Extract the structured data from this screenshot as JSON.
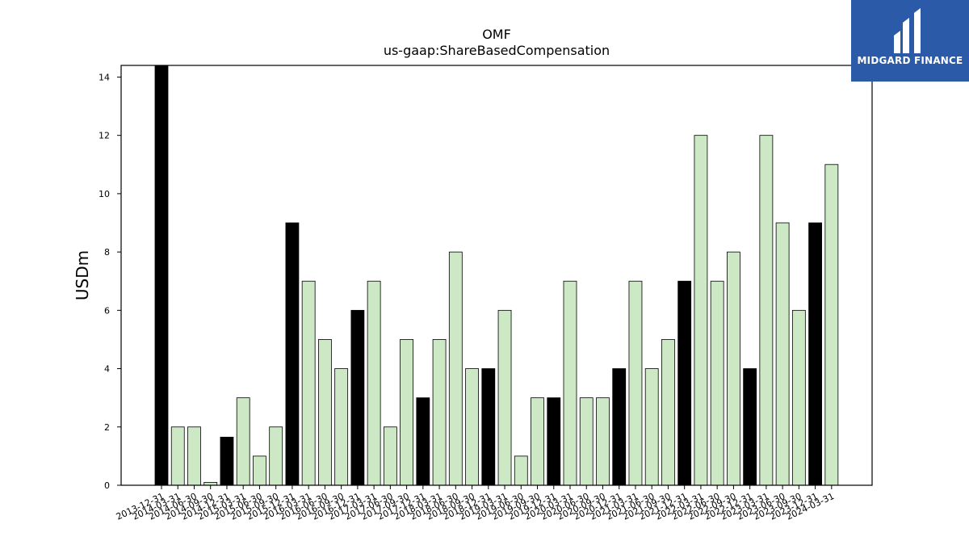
{
  "logo": {
    "text": "MIDGARD FINANCE",
    "bg_color": "#2a5aa8"
  },
  "chart_data": {
    "type": "bar",
    "title": "OMF",
    "subtitle": "us-gaap:ShareBasedCompensation",
    "xlabel": "",
    "ylabel": "USDm",
    "ylim": [
      0,
      14.4
    ],
    "yticks": [
      0,
      2,
      4,
      6,
      8,
      10,
      12,
      14
    ],
    "grid": false,
    "colors": {
      "annual": "#000000",
      "quarterly": "#cce8c4",
      "edge": "#000000"
    },
    "categories": [
      "2013-12-31",
      "2014-03-31",
      "2014-06-30",
      "2014-09-30",
      "2014-12-31",
      "2015-03-31",
      "2015-06-30",
      "2015-09-30",
      "2015-12-31",
      "2016-03-31",
      "2016-06-30",
      "2016-09-30",
      "2016-12-31",
      "2017-03-31",
      "2017-06-30",
      "2017-09-30",
      "2017-12-31",
      "2018-03-31",
      "2018-06-30",
      "2018-09-30",
      "2018-12-31",
      "2019-03-31",
      "2019-06-30",
      "2019-09-30",
      "2019-12-31",
      "2020-03-31",
      "2020-06-30",
      "2020-09-30",
      "2020-12-31",
      "2021-03-31",
      "2021-06-30",
      "2021-09-30",
      "2021-12-31",
      "2022-03-31",
      "2022-06-30",
      "2022-09-30",
      "2022-12-31",
      "2023-03-31",
      "2023-06-30",
      "2023-09-30",
      "2023-12-31",
      "2024-03-31"
    ],
    "values": [
      14.4,
      2,
      2,
      0.1,
      1.65,
      3,
      1,
      2,
      9,
      7,
      5,
      4,
      6,
      7,
      2,
      5,
      3,
      5,
      8,
      4,
      4,
      6,
      1,
      3,
      3,
      7,
      3,
      3,
      4,
      7,
      4,
      5,
      7,
      12,
      7,
      8,
      4,
      12,
      9,
      6,
      9,
      11
    ],
    "annual": [
      true,
      false,
      false,
      false,
      true,
      false,
      false,
      false,
      true,
      false,
      false,
      false,
      true,
      false,
      false,
      false,
      true,
      false,
      false,
      false,
      true,
      false,
      false,
      false,
      true,
      false,
      false,
      false,
      true,
      false,
      false,
      false,
      true,
      false,
      false,
      false,
      true,
      false,
      false,
      false,
      true,
      false
    ]
  }
}
